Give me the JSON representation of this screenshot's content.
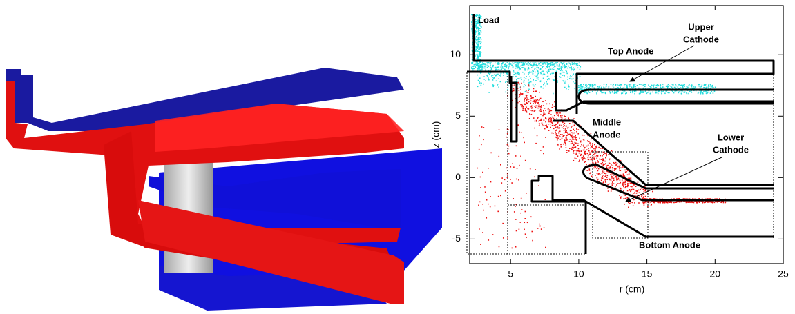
{
  "chart_data": {
    "type": "scatter",
    "xlabel": "r (cm)",
    "ylabel": "z (cm)",
    "xlim": [
      2,
      25
    ],
    "ylim": [
      -7,
      14
    ],
    "xticks": [
      5,
      10,
      15,
      20,
      25
    ],
    "yticks": [
      -5,
      0,
      5,
      10
    ],
    "annotations": [
      [
        "Load"
      ],
      [
        "Top Anode"
      ],
      [
        "Upper",
        "Cathode"
      ],
      [
        "Middle",
        "Anode"
      ],
      [
        "Lower",
        "Cathode"
      ],
      [
        "Bottom Anode"
      ]
    ]
  }
}
